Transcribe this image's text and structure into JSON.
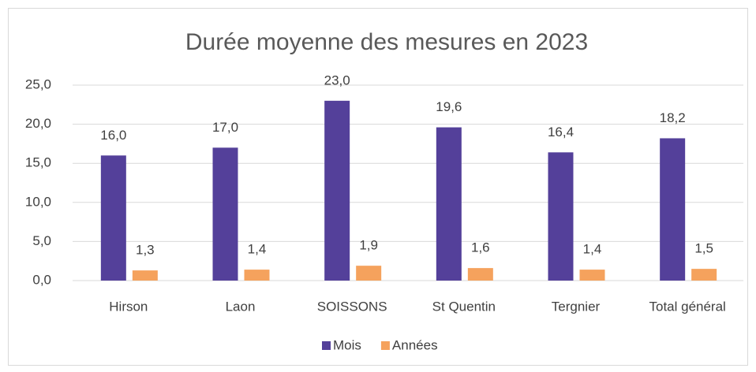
{
  "chart_data": {
    "type": "bar",
    "title": "Durée moyenne des mesures en 2023",
    "categories": [
      "Hirson",
      "Laon",
      "SOISSONS",
      "St Quentin",
      "Tergnier",
      "Total général"
    ],
    "series": [
      {
        "name": "Mois",
        "color": "#54409a",
        "values": [
          16.0,
          17.0,
          23.0,
          19.6,
          16.4,
          18.2
        ],
        "value_labels": [
          "16,0",
          "17,0",
          "23,0",
          "19,6",
          "16,4",
          "18,2"
        ]
      },
      {
        "name": "Années",
        "color": "#f5a25d",
        "values": [
          1.3,
          1.4,
          1.9,
          1.6,
          1.4,
          1.5
        ],
        "value_labels": [
          "1,3",
          "1,4",
          "1,9",
          "1,6",
          "1,4",
          "1,5"
        ]
      }
    ],
    "ylim": [
      0,
      25
    ],
    "yticks": [
      {
        "value": 0,
        "label": "0,0"
      },
      {
        "value": 5,
        "label": "5,0"
      },
      {
        "value": 10,
        "label": "10,0"
      },
      {
        "value": 15,
        "label": "15,0"
      },
      {
        "value": 20,
        "label": "20,0"
      },
      {
        "value": 25,
        "label": "25,0"
      }
    ],
    "grid": true,
    "legend": "bottom"
  }
}
